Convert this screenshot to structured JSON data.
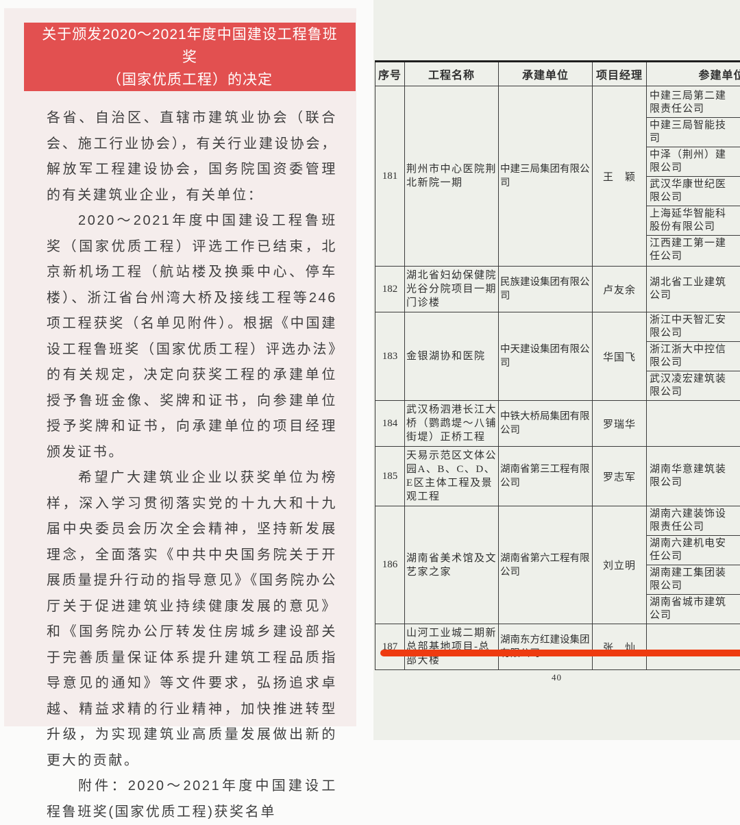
{
  "left_page": {
    "banner_color": "#e25050",
    "title_lines": [
      "关于颁发2020～2021年度中国建设工程鲁班",
      "奖",
      "（国家优质工程）的决定"
    ],
    "paragraphs": [
      {
        "indent": false,
        "text": "各省、自治区、直辖市建筑业协会（联合会、施工行业协会），有关行业建设协会，解放军工程建设协会，国务院国资委管理的有关建筑业企业，有关单位："
      },
      {
        "indent": true,
        "text": "2020～2021年度中国建设工程鲁班奖（国家优质工程）评选工作已结束，北京新机场工程（航站楼及换乘中心、停车楼）、浙江省台州湾大桥及接线工程等246项工程获奖（名单见附件）。根据《中国建设工程鲁班奖（国家优质工程）评选办法》的有关规定，决定向获奖工程的承建单位授予鲁班金像、奖牌和证书，向参建单位授予奖牌和证书，向承建单位的项目经理颁发证书。"
      },
      {
        "indent": true,
        "text": "希望广大建筑业企业以获奖单位为榜样，深入学习贯彻落实党的十九大和十九届中央委员会历次全会精神，坚持新发展理念，全面落实《中共中央国务院关于开展质量提升行动的指导意见》《国务院办公厅关于促进建筑业持续健康发展的意见》和《国务院办公厅转发住房城乡建设部关于完善质量保证体系提升建筑工程品质指导意见的通知》等文件要求，弘扬追求卓越、精益求精的行业精神，加快推进转型升级，为实现建筑业高质量发展做出新的更大的贡献。"
      },
      {
        "indent": true,
        "text": "附件：2020～2021年度中国建设工程鲁班奖(国家优质工程)获奖名单"
      }
    ]
  },
  "table_page": {
    "headers": [
      "序号",
      "工程名称",
      "承建单位",
      "项目经理",
      "参建单位"
    ],
    "rows": [
      {
        "no": "181",
        "project": "荆州市中心医院荆北新院一期",
        "contractor": "中建三局集团有限公司",
        "manager": "王　颖",
        "participants": [
          [
            "中建三局第二建",
            "限责任公司"
          ],
          [
            "中建三局智能技",
            "司"
          ],
          [
            "中泽（荆州）建",
            "限公司"
          ],
          [
            "武汉华康世纪医",
            "限公司"
          ],
          [
            "上海延华智能科",
            "股份有限公司"
          ],
          [
            "江西建工第一建",
            "任公司"
          ]
        ]
      },
      {
        "no": "182",
        "project": "湖北省妇幼保健院光谷分院项目一期门诊楼",
        "contractor": "民族建设集团有限公司",
        "manager": "卢友余",
        "participants": [
          [
            "湖北省工业建筑",
            "公司"
          ]
        ]
      },
      {
        "no": "183",
        "project": "金银湖协和医院",
        "contractor": "中天建设集团有限公司",
        "manager": "华国飞",
        "participants": [
          [
            "浙江中天智汇安",
            "限公司"
          ],
          [
            "浙江浙大中控信",
            "限公司"
          ],
          [
            "武汉凌宏建筑装",
            "限公司"
          ]
        ]
      },
      {
        "no": "184",
        "project": "武汉杨泗港长江大桥（鹦鹉堤～八铺街堤）正桥工程",
        "contractor": "中铁大桥局集团有限公司",
        "manager": "罗瑞华",
        "participants": []
      },
      {
        "no": "185",
        "project": "天易示范区文体公园A、B、C、D、E区主体工程及景观工程",
        "contractor": "湖南省第三工程有限公司",
        "manager": "罗志军",
        "participants": [
          [
            "湖南华意建筑装",
            "限公司"
          ]
        ]
      },
      {
        "no": "186",
        "project": "湖南省美术馆及文艺家之家",
        "contractor": "湖南省第六工程有限公司",
        "manager": "刘立明",
        "participants": [
          [
            "湖南六建装饰设",
            "限责任公司"
          ],
          [
            "湖南六建机电安",
            "任公司"
          ],
          [
            "湖南建工集团装",
            "限公司"
          ],
          [
            "湖南省城市建筑",
            "公司"
          ]
        ]
      },
      {
        "no": "187",
        "project": "山河工业城二期新总部基地项目-总部大楼",
        "contractor": "湖南东方红建设集团有限公司",
        "manager": "张　灿",
        "participants": []
      }
    ],
    "page_number": "40",
    "underline_color": "#ee3b10"
  }
}
